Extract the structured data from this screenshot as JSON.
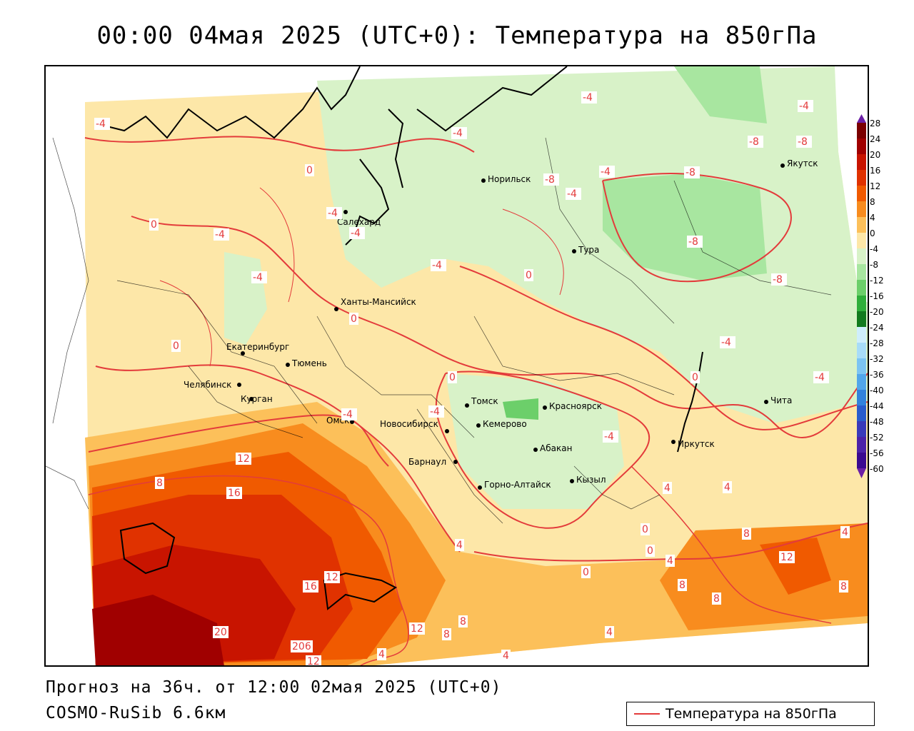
{
  "title": "00:00 04мая 2025 (UTC+0): Температура на 850гПа",
  "forecast_line": "Прогноз на 36ч. от 12:00 02мая 2025 (UTC+0)",
  "model_line": "COSMO-RuSib 6.6км",
  "legend": {
    "label": "Температура на 850гПа",
    "color": "#e33b3b"
  },
  "colorbar": {
    "labels": [
      "28",
      "24",
      "20",
      "16",
      "12",
      "8",
      "4",
      "0",
      "-4",
      "-8",
      "-12",
      "-16",
      "-20",
      "-24",
      "-28",
      "-32",
      "-36",
      "-40",
      "-44",
      "-48",
      "-52",
      "-56",
      "-60"
    ],
    "colors": [
      "#7a0000",
      "#a00000",
      "#c81400",
      "#e03200",
      "#f05a00",
      "#f88c1e",
      "#fcc05a",
      "#fde7a8",
      "#d8f2c8",
      "#a8e6a0",
      "#6ccf6a",
      "#2fae3a",
      "#127a1e",
      "#cfeefc",
      "#a8dcf8",
      "#7cc4f2",
      "#52a6ea",
      "#3282dc",
      "#2a5ccc",
      "#3a3aba",
      "#4c22a8",
      "#3a0a90",
      "#6b1fa6"
    ]
  },
  "cities": [
    {
      "name": "Якутск"
    },
    {
      "name": "Норильск"
    },
    {
      "name": "Салехард"
    },
    {
      "name": "Тура"
    },
    {
      "name": "Ханты-Мансийск"
    },
    {
      "name": "Екатеринбург"
    },
    {
      "name": "Тюмень"
    },
    {
      "name": "Челябинск"
    },
    {
      "name": "Курган"
    },
    {
      "name": "Омск"
    },
    {
      "name": "Томск"
    },
    {
      "name": "Красноярск"
    },
    {
      "name": "Кемерово"
    },
    {
      "name": "Новосибирск"
    },
    {
      "name": "Абакан"
    },
    {
      "name": "Барнаул"
    },
    {
      "name": "Кызыл"
    },
    {
      "name": "Горно-Алтайск"
    },
    {
      "name": "Иркутск"
    },
    {
      "name": "Чита"
    }
  ],
  "contour_labels": [
    "-4",
    "-4",
    "0",
    "-4",
    "-4",
    "-4",
    "0",
    "-4",
    "-4",
    "-4",
    "0",
    "0",
    "-8",
    "-8",
    "-4",
    "-4",
    "-8",
    "-8",
    "-8",
    "-8",
    "-4",
    "-4",
    "0",
    "0",
    "-4",
    "-4",
    "-4",
    "-4",
    "0",
    "12",
    "8",
    "16",
    "4",
    "12",
    "16",
    "20",
    "206",
    "12",
    "12",
    "8",
    "8",
    "4",
    "4",
    "4",
    "0",
    "8",
    "8",
    "0",
    "0",
    "4",
    "4",
    "8",
    "12",
    "4",
    "4",
    "8"
  ]
}
